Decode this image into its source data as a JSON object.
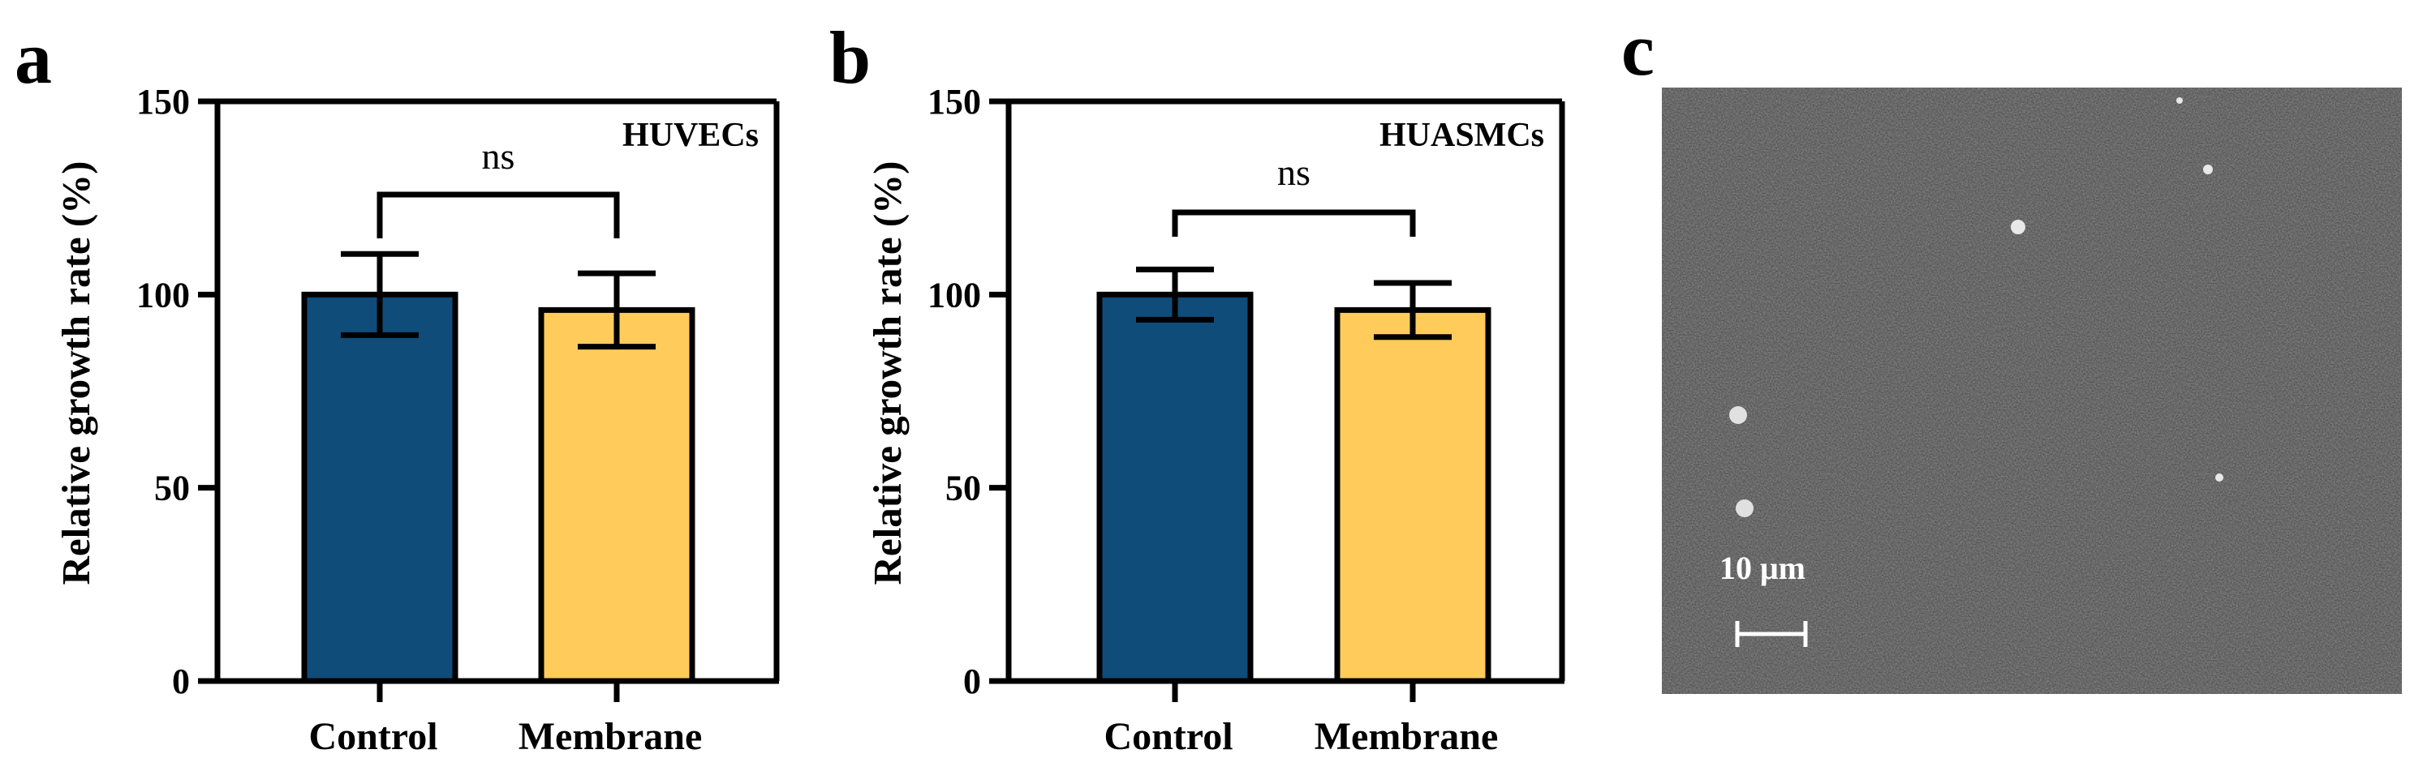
{
  "panels": {
    "a": "a",
    "b": "b",
    "c": "c"
  },
  "chart_data": [
    {
      "type": "bar",
      "panel": "a",
      "annotation": "HUVECs",
      "ylabel": "Relative growth rate (%)",
      "xlabel": "",
      "ylim": [
        0,
        150
      ],
      "yticks": [
        "0",
        "50",
        "100",
        "150"
      ],
      "categories": [
        "Control",
        "Membrane"
      ],
      "values": [
        100,
        96
      ],
      "errors": [
        10.5,
        9.5
      ],
      "colors": [
        "#0f4c7a",
        "#ffcc5c"
      ],
      "significance": "ns"
    },
    {
      "type": "bar",
      "panel": "b",
      "annotation": "HUASMCs",
      "ylabel": "Relative growth rate (%)",
      "xlabel": "",
      "ylim": [
        0,
        150
      ],
      "yticks": [
        "0",
        "50",
        "100",
        "150"
      ],
      "categories": [
        "Control",
        "Membrane"
      ],
      "values": [
        100,
        96
      ],
      "errors": [
        6.5,
        7
      ],
      "colors": [
        "#0f4c7a",
        "#ffcc5c"
      ],
      "significance": "ns"
    }
  ],
  "micrograph": {
    "scale_bar_label": "10 μm"
  }
}
